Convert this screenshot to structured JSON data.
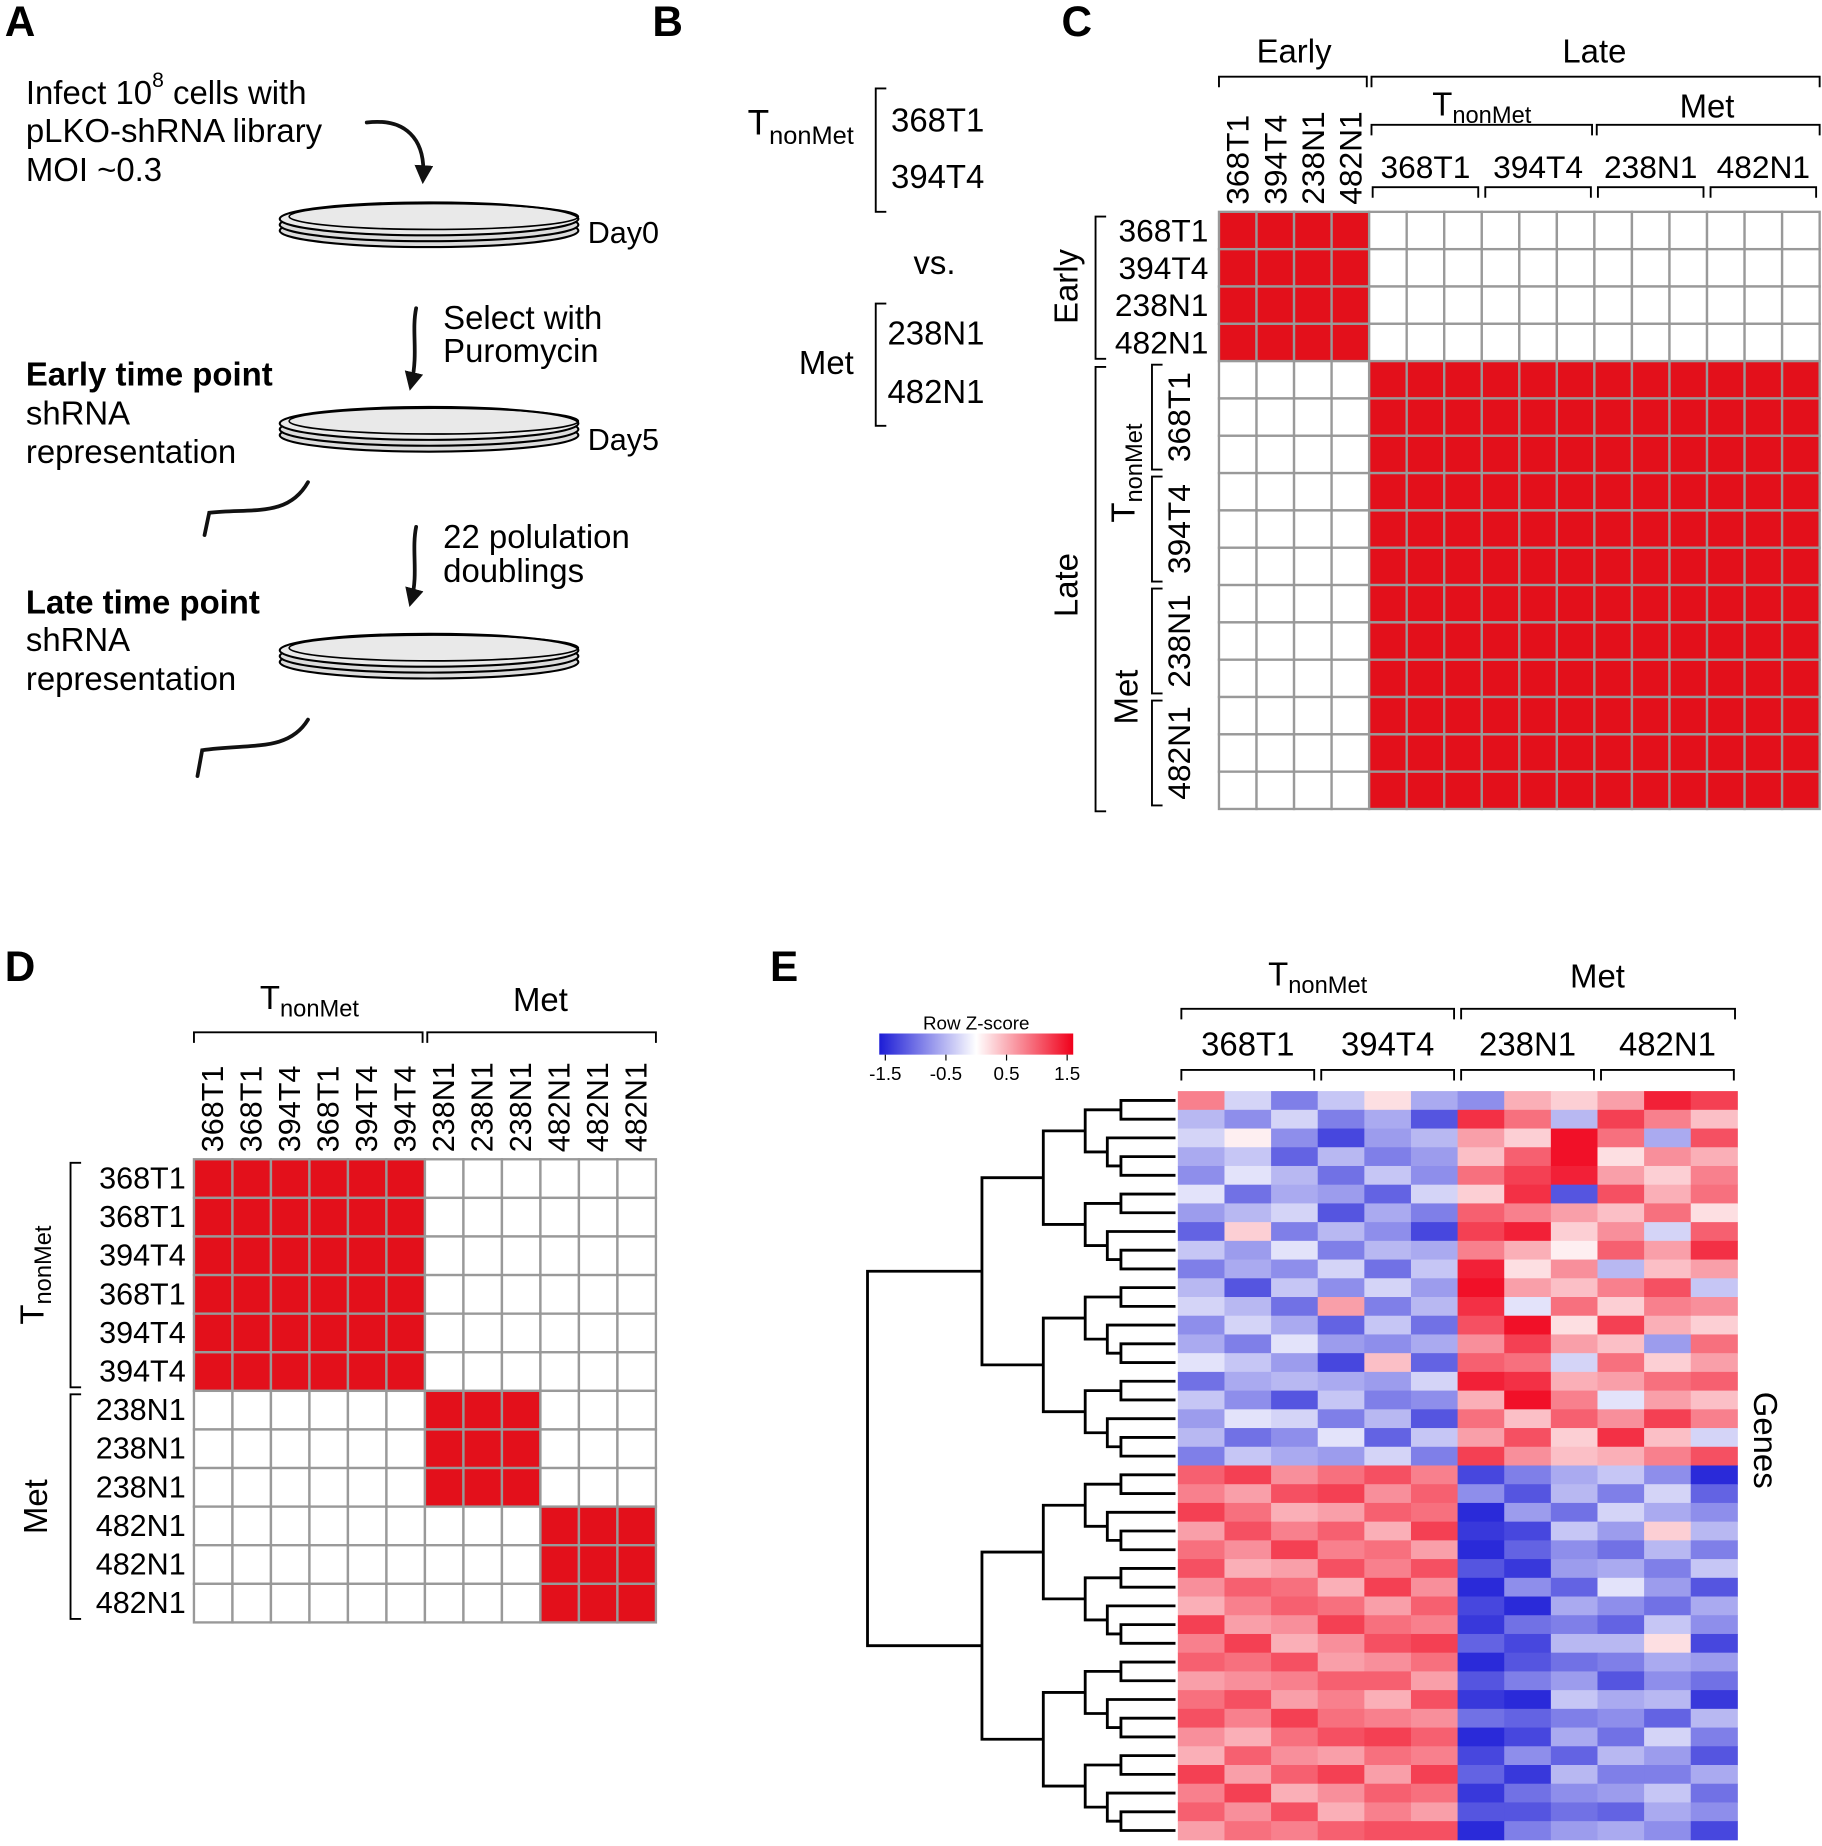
{
  "panels": {
    "a": "A",
    "b": "B",
    "c": "C",
    "d": "D",
    "e": "E"
  },
  "panel_a": {
    "line1_pre": "Infect 10",
    "line1_sup": "8",
    "line1_post": " cells with",
    "line2": "pLKO-shRNA library",
    "line3": "MOI ~0.3",
    "day0": "Day0",
    "select1": "Select with",
    "select2": "Puromycin",
    "early_title": "Early time point",
    "early_1": "shRNA",
    "early_2": "representation",
    "day5": "Day5",
    "doubling1": "22 polulation",
    "doubling2": "doublings",
    "late_title": "Late time point",
    "late_1": "shRNA",
    "late_2": "representation"
  },
  "panel_b": {
    "t": "T",
    "sub": "nonMet",
    "tnonmet_lines": [
      "368T1",
      "394T4"
    ],
    "vs": "vs.",
    "met": "Met",
    "met_lines": [
      "238N1",
      "482N1"
    ]
  },
  "panel_c": {
    "early": "Early",
    "late": "Late",
    "t": "T",
    "sub": "nonMet",
    "met": "Met",
    "col_labels": [
      "368T1",
      "394T4",
      "238N1",
      "482N1"
    ],
    "col_group_labels": [
      "368T1",
      "394T4",
      "238N1",
      "482N1"
    ],
    "row_early": "Early",
    "row_late": "Late",
    "row_t": "T",
    "row_sub": "nonMet",
    "row_met": "Met",
    "row_labels": [
      "368T1",
      "394T4",
      "238N1",
      "482N1"
    ],
    "row_group_labels": [
      "368T1",
      "394T4",
      "238N1",
      "482N1"
    ],
    "on_color": "#e3101b",
    "off_color": "#ffffff",
    "matrix": [
      [
        1,
        1,
        1,
        1,
        0,
        0,
        0,
        0,
        0,
        0,
        0,
        0,
        0,
        0,
        0,
        0
      ],
      [
        1,
        1,
        1,
        1,
        0,
        0,
        0,
        0,
        0,
        0,
        0,
        0,
        0,
        0,
        0,
        0
      ],
      [
        1,
        1,
        1,
        1,
        0,
        0,
        0,
        0,
        0,
        0,
        0,
        0,
        0,
        0,
        0,
        0
      ],
      [
        1,
        1,
        1,
        1,
        0,
        0,
        0,
        0,
        0,
        0,
        0,
        0,
        0,
        0,
        0,
        0
      ],
      [
        0,
        0,
        0,
        0,
        1,
        1,
        1,
        1,
        1,
        1,
        1,
        1,
        1,
        1,
        1,
        1
      ],
      [
        0,
        0,
        0,
        0,
        1,
        1,
        1,
        1,
        1,
        1,
        1,
        1,
        1,
        1,
        1,
        1
      ],
      [
        0,
        0,
        0,
        0,
        1,
        1,
        1,
        1,
        1,
        1,
        1,
        1,
        1,
        1,
        1,
        1
      ],
      [
        0,
        0,
        0,
        0,
        1,
        1,
        1,
        1,
        1,
        1,
        1,
        1,
        1,
        1,
        1,
        1
      ],
      [
        0,
        0,
        0,
        0,
        1,
        1,
        1,
        1,
        1,
        1,
        1,
        1,
        1,
        1,
        1,
        1
      ],
      [
        0,
        0,
        0,
        0,
        1,
        1,
        1,
        1,
        1,
        1,
        1,
        1,
        1,
        1,
        1,
        1
      ],
      [
        0,
        0,
        0,
        0,
        1,
        1,
        1,
        1,
        1,
        1,
        1,
        1,
        1,
        1,
        1,
        1
      ],
      [
        0,
        0,
        0,
        0,
        1,
        1,
        1,
        1,
        1,
        1,
        1,
        1,
        1,
        1,
        1,
        1
      ],
      [
        0,
        0,
        0,
        0,
        1,
        1,
        1,
        1,
        1,
        1,
        1,
        1,
        1,
        1,
        1,
        1
      ],
      [
        0,
        0,
        0,
        0,
        1,
        1,
        1,
        1,
        1,
        1,
        1,
        1,
        1,
        1,
        1,
        1
      ],
      [
        0,
        0,
        0,
        0,
        1,
        1,
        1,
        1,
        1,
        1,
        1,
        1,
        1,
        1,
        1,
        1
      ],
      [
        0,
        0,
        0,
        0,
        1,
        1,
        1,
        1,
        1,
        1,
        1,
        1,
        1,
        1,
        1,
        1
      ]
    ]
  },
  "panel_d": {
    "top_t": "T",
    "top_sub": "nonMet",
    "top_met": "Met",
    "side_t": "T",
    "side_sub": "nonMet",
    "side_met": "Met",
    "col_labels": [
      "368T1",
      "368T1",
      "394T4",
      "368T1",
      "394T4",
      "394T4",
      "238N1",
      "238N1",
      "238N1",
      "482N1",
      "482N1",
      "482N1"
    ],
    "row_labels": [
      "368T1",
      "368T1",
      "394T4",
      "368T1",
      "394T4",
      "394T4",
      "238N1",
      "238N1",
      "238N1",
      "482N1",
      "482N1",
      "482N1"
    ],
    "on_color": "#e3101b",
    "off_color": "#ffffff",
    "matrix": [
      [
        1,
        1,
        1,
        1,
        1,
        1,
        0,
        0,
        0,
        0,
        0,
        0
      ],
      [
        1,
        1,
        1,
        1,
        1,
        1,
        0,
        0,
        0,
        0,
        0,
        0
      ],
      [
        1,
        1,
        1,
        1,
        1,
        1,
        0,
        0,
        0,
        0,
        0,
        0
      ],
      [
        1,
        1,
        1,
        1,
        1,
        1,
        0,
        0,
        0,
        0,
        0,
        0
      ],
      [
        1,
        1,
        1,
        1,
        1,
        1,
        0,
        0,
        0,
        0,
        0,
        0
      ],
      [
        1,
        1,
        1,
        1,
        1,
        1,
        0,
        0,
        0,
        0,
        0,
        0
      ],
      [
        0,
        0,
        0,
        0,
        0,
        0,
        1,
        1,
        1,
        0,
        0,
        0
      ],
      [
        0,
        0,
        0,
        0,
        0,
        0,
        1,
        1,
        1,
        0,
        0,
        0
      ],
      [
        0,
        0,
        0,
        0,
        0,
        0,
        1,
        1,
        1,
        0,
        0,
        0
      ],
      [
        0,
        0,
        0,
        0,
        0,
        0,
        0,
        0,
        0,
        1,
        1,
        1
      ],
      [
        0,
        0,
        0,
        0,
        0,
        0,
        0,
        0,
        0,
        1,
        1,
        1
      ],
      [
        0,
        0,
        0,
        0,
        0,
        0,
        0,
        0,
        0,
        1,
        1,
        1
      ]
    ]
  },
  "panel_e": {
    "t": "T",
    "sub": "nonMet",
    "met": "Met",
    "sample_labels": [
      "368T1",
      "394T4",
      "238N1",
      "482N1"
    ],
    "genes": "Genes",
    "colorbar": {
      "title": "Row Z-score",
      "lim": [
        -1.6,
        1.6
      ],
      "ticks": [
        -1.5,
        -0.5,
        0.5,
        1.5
      ],
      "low": "#1c1cd6",
      "mid": "#ffffff",
      "high": "#f0001a"
    },
    "values": [
      [
        0.8,
        -0.3,
        -0.9,
        -0.4,
        0.2,
        -0.6,
        -0.8,
        0.5,
        0.3,
        0.6,
        1.4,
        1.2
      ],
      [
        -0.5,
        -0.8,
        -0.3,
        -0.9,
        -0.6,
        -1.2,
        1.3,
        0.9,
        -0.5,
        1.2,
        0.8,
        0.4
      ],
      [
        -0.3,
        0.1,
        -0.8,
        -1.3,
        -0.7,
        -0.5,
        0.6,
        0.3,
        1.5,
        0.9,
        -0.6,
        1.1
      ],
      [
        -0.6,
        -0.4,
        -1.1,
        -0.5,
        -0.9,
        -0.7,
        0.4,
        1.0,
        1.5,
        0.2,
        0.7,
        0.5
      ],
      [
        -0.8,
        -0.2,
        -0.5,
        -1.0,
        -0.4,
        -0.8,
        0.9,
        1.2,
        1.4,
        0.6,
        0.3,
        0.8
      ],
      [
        -0.2,
        -1.0,
        -0.6,
        -0.7,
        -1.1,
        -0.3,
        0.3,
        1.3,
        -1.2,
        1.1,
        0.5,
        0.9
      ],
      [
        -0.7,
        -0.5,
        -0.3,
        -1.2,
        -0.6,
        -0.9,
        1.0,
        0.8,
        0.6,
        0.4,
        0.9,
        0.2
      ],
      [
        -1.1,
        0.3,
        -0.9,
        -0.5,
        -0.8,
        -1.3,
        1.2,
        1.4,
        0.3,
        0.7,
        -0.3,
        1.0
      ],
      [
        -0.4,
        -0.7,
        -0.2,
        -0.9,
        -0.5,
        -0.6,
        0.8,
        0.5,
        0.1,
        1.0,
        0.6,
        1.3
      ],
      [
        -0.9,
        -0.6,
        -0.8,
        -0.3,
        -1.0,
        -0.4,
        1.4,
        0.2,
        0.7,
        -0.5,
        0.4,
        0.6
      ],
      [
        -0.5,
        -1.2,
        -0.4,
        -0.8,
        -0.3,
        -0.7,
        1.5,
        0.6,
        0.4,
        0.8,
        1.1,
        -0.4
      ],
      [
        -0.3,
        -0.5,
        -1.0,
        0.6,
        -0.9,
        -0.5,
        1.3,
        -0.2,
        0.9,
        0.3,
        0.8,
        0.7
      ],
      [
        -0.8,
        -0.3,
        -0.6,
        -1.1,
        -0.4,
        -1.0,
        1.1,
        1.5,
        0.2,
        1.2,
        0.5,
        0.3
      ],
      [
        -0.6,
        -0.9,
        -0.2,
        -0.7,
        -0.8,
        -0.6,
        0.7,
        1.2,
        0.6,
        0.4,
        -0.7,
        0.9
      ],
      [
        -0.2,
        -0.4,
        -0.7,
        -1.3,
        0.4,
        -1.1,
        1.0,
        0.9,
        -0.3,
        0.9,
        0.3,
        0.6
      ],
      [
        -1.0,
        -0.6,
        -0.5,
        -0.6,
        -0.7,
        -0.3,
        1.4,
        1.3,
        0.5,
        0.6,
        0.9,
        1.0
      ],
      [
        -0.4,
        -0.8,
        -1.2,
        -0.4,
        -0.9,
        -0.8,
        0.5,
        1.5,
        0.8,
        -0.2,
        0.6,
        0.4
      ],
      [
        -0.7,
        -0.2,
        -0.3,
        -0.9,
        -0.5,
        -1.2,
        0.9,
        0.4,
        1.0,
        0.7,
        1.2,
        0.8
      ],
      [
        -0.5,
        -1.0,
        -0.8,
        -0.2,
        -1.1,
        -0.4,
        0.6,
        1.1,
        0.3,
        1.3,
        0.4,
        -0.3
      ],
      [
        -0.9,
        -0.4,
        -0.6,
        -0.7,
        -0.3,
        -0.9,
        1.2,
        0.7,
        0.4,
        0.5,
        0.8,
        1.1
      ],
      [
        1.0,
        1.2,
        0.7,
        0.9,
        1.1,
        0.8,
        -1.3,
        -0.9,
        -0.6,
        -0.4,
        -0.8,
        -1.5
      ],
      [
        0.8,
        0.6,
        1.1,
        1.2,
        0.7,
        1.0,
        -0.8,
        -1.2,
        -0.5,
        -0.9,
        -0.3,
        -1.1
      ],
      [
        1.2,
        0.9,
        0.5,
        0.6,
        1.0,
        0.9,
        -1.5,
        -0.7,
        -1.0,
        -0.3,
        -0.6,
        -0.8
      ],
      [
        0.6,
        1.1,
        0.8,
        1.0,
        0.5,
        1.2,
        -1.4,
        -1.3,
        -0.4,
        -0.7,
        0.3,
        -0.5
      ],
      [
        0.9,
        0.7,
        1.2,
        0.8,
        0.9,
        0.6,
        -1.5,
        -1.1,
        -0.8,
        -1.0,
        -0.5,
        -0.9
      ],
      [
        1.1,
        0.5,
        0.6,
        1.1,
        0.8,
        1.1,
        -1.2,
        -1.4,
        -0.7,
        -0.6,
        -0.9,
        -0.4
      ],
      [
        0.7,
        1.0,
        0.9,
        0.5,
        1.2,
        0.7,
        -1.5,
        -0.8,
        -1.1,
        -0.2,
        -0.7,
        -1.2
      ],
      [
        0.5,
        0.8,
        1.0,
        0.9,
        0.6,
        1.0,
        -1.3,
        -1.5,
        -0.6,
        -0.8,
        -1.0,
        -0.6
      ],
      [
        1.2,
        0.6,
        0.7,
        1.2,
        0.9,
        0.8,
        -1.4,
        -1.0,
        -0.9,
        -1.1,
        -0.4,
        -0.8
      ],
      [
        0.8,
        1.2,
        0.5,
        0.7,
        1.1,
        1.2,
        -1.1,
        -1.3,
        -0.5,
        -0.5,
        0.2,
        -1.3
      ],
      [
        1.0,
        0.9,
        1.1,
        0.6,
        0.7,
        0.9,
        -1.5,
        -1.2,
        -1.0,
        -0.9,
        -0.6,
        -0.7
      ],
      [
        0.6,
        0.7,
        0.8,
        1.0,
        1.0,
        0.6,
        -1.2,
        -0.9,
        -0.7,
        -1.2,
        -0.8,
        -1.0
      ],
      [
        0.9,
        1.1,
        0.6,
        0.8,
        0.5,
        1.1,
        -1.4,
        -1.5,
        -0.4,
        -0.6,
        -0.5,
        -1.4
      ],
      [
        1.1,
        0.8,
        1.2,
        0.9,
        0.8,
        0.7,
        -1.0,
        -1.1,
        -0.9,
        -0.8,
        -1.1,
        -0.5
      ],
      [
        0.7,
        0.5,
        0.9,
        1.1,
        1.2,
        1.0,
        -1.5,
        -1.3,
        -0.6,
        -1.0,
        -0.3,
        -0.9
      ],
      [
        0.5,
        1.0,
        0.7,
        0.6,
        0.9,
        0.8,
        -1.3,
        -0.8,
        -1.1,
        -0.5,
        -0.7,
        -1.2
      ],
      [
        1.2,
        0.6,
        1.0,
        1.2,
        0.6,
        1.2,
        -1.1,
        -1.4,
        -0.5,
        -0.9,
        -0.9,
        -0.6
      ],
      [
        0.8,
        1.2,
        0.5,
        0.7,
        1.0,
        0.9,
        -1.4,
        -1.0,
        -0.8,
        -0.7,
        -0.4,
        -1.0
      ],
      [
        1.0,
        0.7,
        1.1,
        0.5,
        0.8,
        0.6,
        -1.2,
        -1.2,
        -1.0,
        -1.1,
        -0.6,
        -0.8
      ],
      [
        0.6,
        0.9,
        0.8,
        1.0,
        1.1,
        1.1,
        -1.5,
        -0.9,
        -0.7,
        -0.6,
        -0.8,
        -1.3
      ]
    ]
  }
}
